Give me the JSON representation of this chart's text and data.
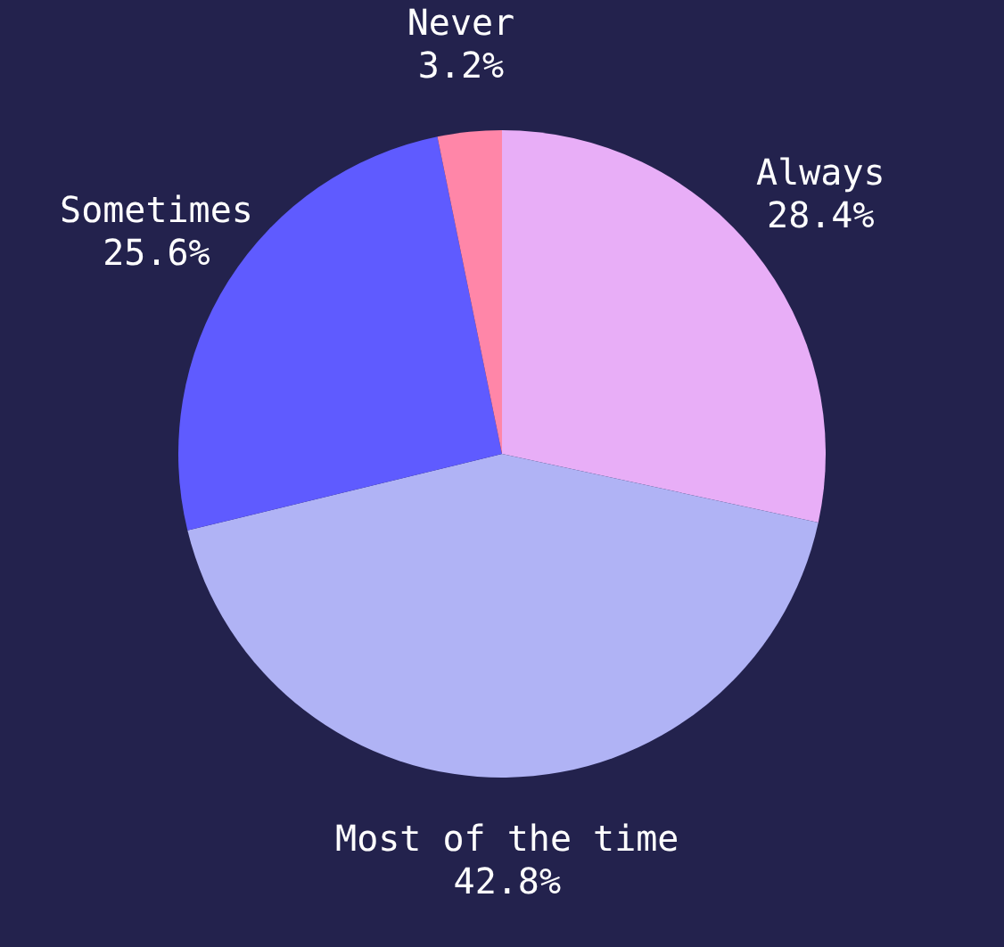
{
  "chart_data": {
    "type": "pie",
    "categories": [
      "Always",
      "Most of the time",
      "Sometimes",
      "Never"
    ],
    "values": [
      28.4,
      42.8,
      25.6,
      3.2
    ],
    "value_labels": [
      "28.4%",
      "42.8%",
      "25.6%",
      "3.2%"
    ],
    "colors": [
      "#e8aef7",
      "#b0b3f5",
      "#5f5bff",
      "#ff86a8"
    ],
    "legend": false
  }
}
